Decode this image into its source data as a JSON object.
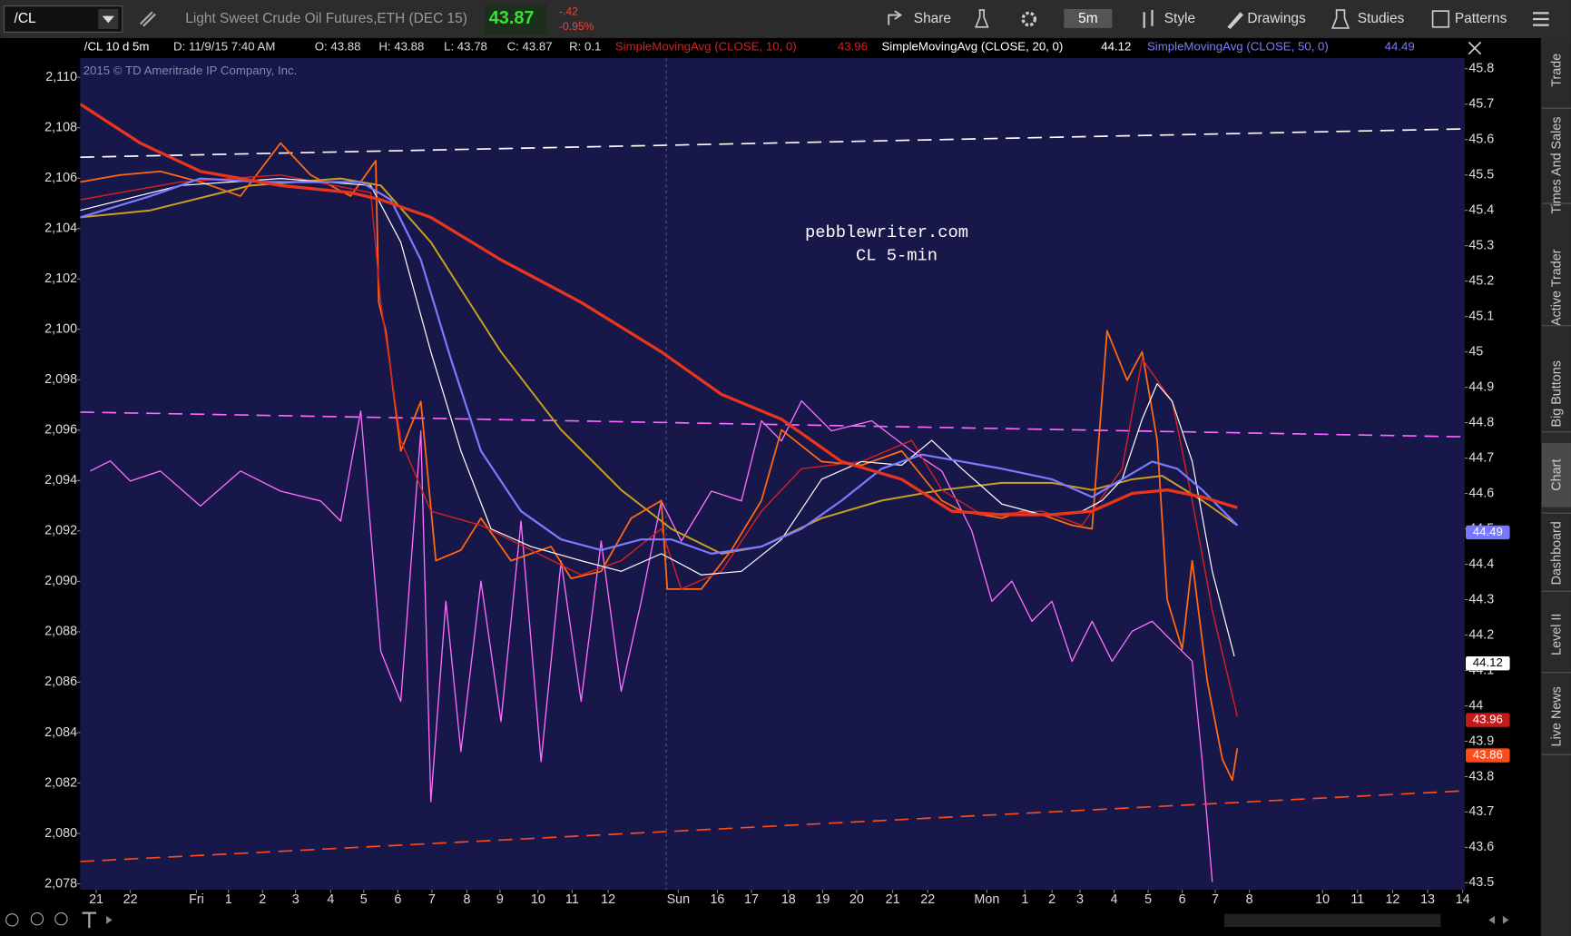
{
  "toolbar": {
    "symbol": "/CL",
    "description": "Light Sweet Crude Oil Futures,ETH (DEC 15)",
    "last": "43.87",
    "change": "-.42",
    "change_pct": "-0.95%",
    "buttons": [
      "Share",
      "5m",
      "Style",
      "Drawings",
      "Studies",
      "Patterns"
    ]
  },
  "info_bar": {
    "study": "/CL 10 d 5m",
    "date": "D: 11/9/15 7:40 AM",
    "open": "O: 43.88",
    "high": "H: 43.88",
    "low": "L: 43.78",
    "close": "C: 43.87",
    "range": "R: 0.1"
  },
  "sidebar": {
    "tabs": [
      "Trade",
      "Times And Sales",
      "Active Trader",
      "Big Buttons",
      "Chart",
      "Dashboard",
      "Level II",
      "Live News"
    ],
    "active": "Chart"
  },
  "chart_data": {
    "type": "line",
    "watermark": "2015 © TD Ameritrade IP Company, Inc.",
    "annotations": [
      "pebblewriter.com",
      "CL 5-min"
    ],
    "xlim": [
      0,
      1382
    ],
    "xticks": [
      {
        "value": 16,
        "label": "21"
      },
      {
        "value": 50,
        "label": "22"
      },
      {
        "value": 116,
        "label": "Fri"
      },
      {
        "value": 148,
        "label": "1"
      },
      {
        "value": 182,
        "label": "2"
      },
      {
        "value": 215,
        "label": "3"
      },
      {
        "value": 250,
        "label": "4"
      },
      {
        "value": 283,
        "label": "5"
      },
      {
        "value": 317,
        "label": "6"
      },
      {
        "value": 351,
        "label": "7"
      },
      {
        "value": 386,
        "label": "8"
      },
      {
        "value": 419,
        "label": "9"
      },
      {
        "value": 457,
        "label": "10"
      },
      {
        "value": 491,
        "label": "11"
      },
      {
        "value": 527,
        "label": "12"
      },
      {
        "value": 597,
        "label": "Sun"
      },
      {
        "value": 636,
        "label": "16"
      },
      {
        "value": 670,
        "label": "17"
      },
      {
        "value": 707,
        "label": "18"
      },
      {
        "value": 741,
        "label": "19"
      },
      {
        "value": 775,
        "label": "20"
      },
      {
        "value": 811,
        "label": "21"
      },
      {
        "value": 846,
        "label": "22"
      },
      {
        "value": 905,
        "label": "Mon"
      },
      {
        "value": 943,
        "label": "1"
      },
      {
        "value": 970,
        "label": "2"
      },
      {
        "value": 998,
        "label": "3"
      },
      {
        "value": 1032,
        "label": "4"
      },
      {
        "value": 1066,
        "label": "5"
      },
      {
        "value": 1100,
        "label": "6"
      },
      {
        "value": 1133,
        "label": "7"
      },
      {
        "value": 1167,
        "label": "8"
      },
      {
        "value": 1240,
        "label": "10"
      },
      {
        "value": 1275,
        "label": "11"
      },
      {
        "value": 1310,
        "label": "12"
      },
      {
        "value": 1345,
        "label": "13"
      },
      {
        "value": 1380,
        "label": "14"
      }
    ],
    "ylim": [
      43.48,
      45.83
    ],
    "yticks": [
      45.8,
      45.7,
      45.6,
      45.5,
      45.4,
      45.3,
      45.2,
      45.1,
      45,
      44.9,
      44.8,
      44.7,
      44.6,
      44.5,
      44.4,
      44.3,
      44.2,
      44.1,
      44,
      43.9,
      43.8,
      43.7,
      43.6,
      43.5
    ],
    "y2lim": [
      2077.76,
      2110.76
    ],
    "y2ticks": [
      {
        "value": 2110,
        "label": "2,110"
      },
      {
        "value": 2108,
        "label": "2,108"
      },
      {
        "value": 2106,
        "label": "2,106"
      },
      {
        "value": 2104,
        "label": "2,104"
      },
      {
        "value": 2102,
        "label": "2,102"
      },
      {
        "value": 2100,
        "label": "2,100"
      },
      {
        "value": 2098,
        "label": "2,098"
      },
      {
        "value": 2096,
        "label": "2,096"
      },
      {
        "value": 2094,
        "label": "2,094"
      },
      {
        "value": 2092,
        "label": "2,092"
      },
      {
        "value": 2090,
        "label": "2,090"
      },
      {
        "value": 2088,
        "label": "2,088"
      },
      {
        "value": 2086,
        "label": "2,086"
      },
      {
        "value": 2084,
        "label": "2,084"
      },
      {
        "value": 2082,
        "label": "2,082"
      },
      {
        "value": 2080,
        "label": "2,080"
      },
      {
        "value": 2078,
        "label": "2,078"
      }
    ],
    "price_tags": [
      {
        "value": 44.49,
        "label": "44.49",
        "color": "#7777ff"
      },
      {
        "value": 44.12,
        "label": "44.12",
        "color": "#ffffff"
      },
      {
        "value": 43.96,
        "label": "43.96",
        "color": "#c41a1a"
      },
      {
        "value": 43.86,
        "label": "43.86",
        "color": "#ff4a1a"
      }
    ],
    "series": [
      {
        "color": "#ff6fff",
        "line_width": 1.2,
        "axis": "y2",
        "x": [
          10,
          30,
          50,
          80,
          120,
          160,
          200,
          240,
          260,
          280,
          300,
          320,
          340,
          350,
          365,
          380,
          400,
          420,
          440,
          460,
          480,
          500,
          520,
          540,
          560,
          580,
          600,
          630,
          660,
          680,
          700,
          720,
          750,
          790,
          830,
          860,
          890,
          910,
          930,
          950,
          970,
          990,
          1010,
          1030,
          1050,
          1070,
          1090,
          1110,
          1120,
          1130
        ],
        "values": [
          2094.38,
          2094.78,
          2093.98,
          2094.38,
          2092.99,
          2094.38,
          2093.58,
          2093.19,
          2092.39,
          2096.76,
          2087.23,
          2085.24,
          2095.97,
          2081.26,
          2089.21,
          2083.25,
          2090.01,
          2084.44,
          2092.39,
          2082.85,
          2090.8,
          2085.24,
          2091.6,
          2085.64,
          2089.21,
          2093.19,
          2091.6,
          2093.58,
          2093.19,
          2096.37,
          2095.57,
          2097.16,
          2095.97,
          2096.37,
          2095.17,
          2094.38,
          2092.0,
          2089.21,
          2090.01,
          2088.42,
          2089.21,
          2086.83,
          2088.42,
          2086.83,
          2088.02,
          2088.42,
          2087.62,
          2086.83,
          2082.85,
          2078.08
        ]
      },
      {
        "color": "#ffffff",
        "line_width": 1.5,
        "dashed": true,
        "x": [
          0,
          1382
        ],
        "values": [
          45.55,
          45.63
        ]
      },
      {
        "color": "#ff66ff",
        "line_width": 1.5,
        "dashed": true,
        "x": [
          0,
          1382
        ],
        "values": [
          44.83,
          44.76
        ]
      },
      {
        "color": "#ff4a1a",
        "line_width": 1.5,
        "dashed": true,
        "x": [
          0,
          1382
        ],
        "values": [
          43.56,
          43.76
        ]
      },
      {
        "color": "#c8a020",
        "line_width": 1.8,
        "x": [
          0,
          70,
          170,
          260,
          300,
          350,
          420,
          480,
          540,
          590,
          640,
          680,
          740,
          800,
          860,
          920,
          970,
          1010,
          1050,
          1080,
          1120,
          1155
        ],
        "values": [
          45.38,
          45.4,
          45.47,
          45.49,
          45.47,
          45.31,
          45.0,
          44.78,
          44.61,
          44.5,
          44.43,
          44.45,
          44.53,
          44.58,
          44.61,
          44.63,
          44.63,
          44.61,
          44.64,
          44.65,
          44.58,
          44.51
        ]
      },
      {
        "color": "#ff6a10",
        "line_width": 1.6,
        "x": [
          0,
          40,
          80,
          120,
          160,
          200,
          230,
          270,
          295,
          298,
          305,
          320,
          340,
          355,
          380,
          400,
          430,
          470,
          490,
          520,
          550,
          580,
          586,
          620,
          650,
          680,
          700,
          740,
          780,
          820,
          860,
          880,
          920,
          940,
          960,
          990,
          1010,
          1025,
          1045,
          1060,
          1075,
          1085,
          1100,
          1110,
          1125,
          1140,
          1150,
          1155
        ],
        "values": [
          45.48,
          45.5,
          45.51,
          45.48,
          45.44,
          45.59,
          45.5,
          45.44,
          45.54,
          45.14,
          45.06,
          44.72,
          44.86,
          44.41,
          44.44,
          44.53,
          44.41,
          44.45,
          44.36,
          44.38,
          44.53,
          44.58,
          44.33,
          44.33,
          44.44,
          44.58,
          44.78,
          44.69,
          44.68,
          44.72,
          44.58,
          44.55,
          44.53,
          44.55,
          44.54,
          44.51,
          44.5,
          45.06,
          44.92,
          45.0,
          44.75,
          44.3,
          44.16,
          44.41,
          44.07,
          43.85,
          43.79,
          43.88
        ]
      },
      {
        "name": "SimpleMovingAvg (CLOSE, 10, 0)",
        "color": "#d42020",
        "line_width": 1.3,
        "x": [
          0,
          100,
          200,
          290,
          300,
          320,
          350,
          400,
          450,
          500,
          540,
          580,
          600,
          640,
          680,
          720,
          780,
          830,
          860,
          900,
          960,
          1000,
          1040,
          1060,
          1090,
          1110,
          1130,
          1155
        ],
        "values": [
          45.43,
          45.48,
          45.5,
          45.45,
          45.14,
          44.75,
          44.55,
          44.51,
          44.44,
          44.37,
          44.41,
          44.5,
          44.33,
          44.38,
          44.55,
          44.67,
          44.69,
          44.75,
          44.61,
          44.54,
          44.55,
          44.51,
          44.67,
          44.98,
          44.86,
          44.58,
          44.27,
          43.97
        ]
      },
      {
        "name": "SimpleMovingAvg (CLOSE, 20, 0)",
        "color": "#ffffff",
        "line_width": 1.1,
        "x": [
          0,
          100,
          200,
          290,
          320,
          350,
          380,
          410,
          450,
          500,
          540,
          580,
          620,
          660,
          700,
          740,
          780,
          820,
          850,
          880,
          920,
          960,
          1000,
          1020,
          1040,
          1060,
          1075,
          1090,
          1110,
          1130,
          1152
        ],
        "values": [
          45.4,
          45.47,
          45.49,
          45.47,
          45.31,
          45.0,
          44.72,
          44.5,
          44.45,
          44.41,
          44.38,
          44.43,
          44.37,
          44.38,
          44.47,
          44.64,
          44.69,
          44.68,
          44.75,
          44.67,
          44.57,
          44.54,
          44.55,
          44.58,
          44.64,
          44.81,
          44.91,
          44.86,
          44.69,
          44.38,
          44.14
        ]
      },
      {
        "name": "SimpleMovingAvg (CLOSE, 50, 0)",
        "color": "#7b7bff",
        "line_width": 2,
        "x": [
          0,
          70,
          120,
          180,
          240,
          280,
          310,
          340,
          370,
          400,
          440,
          480,
          520,
          560,
          590,
          630,
          680,
          720,
          760,
          800,
          840,
          880,
          920,
          970,
          1010,
          1040,
          1070,
          1095,
          1120,
          1155
        ],
        "values": [
          45.38,
          45.44,
          45.49,
          45.48,
          45.48,
          45.48,
          45.43,
          45.26,
          44.98,
          44.72,
          44.55,
          44.47,
          44.44,
          44.47,
          44.47,
          44.43,
          44.45,
          44.5,
          44.58,
          44.67,
          44.71,
          44.69,
          44.67,
          44.64,
          44.59,
          44.64,
          44.69,
          44.67,
          44.61,
          44.51
        ]
      },
      {
        "color": "#e8351c",
        "line_width": 3,
        "x": [
          0,
          60,
          120,
          200,
          270,
          300,
          350,
          420,
          500,
          580,
          640,
          700,
          760,
          820,
          870,
          920,
          970,
          1010,
          1050,
          1085,
          1120,
          1155
        ],
        "values": [
          45.7,
          45.59,
          45.51,
          45.47,
          45.45,
          45.43,
          45.38,
          45.26,
          45.14,
          45.0,
          44.88,
          44.81,
          44.69,
          44.64,
          44.55,
          44.54,
          44.54,
          44.55,
          44.6,
          44.61,
          44.59,
          44.56
        ]
      }
    ]
  }
}
